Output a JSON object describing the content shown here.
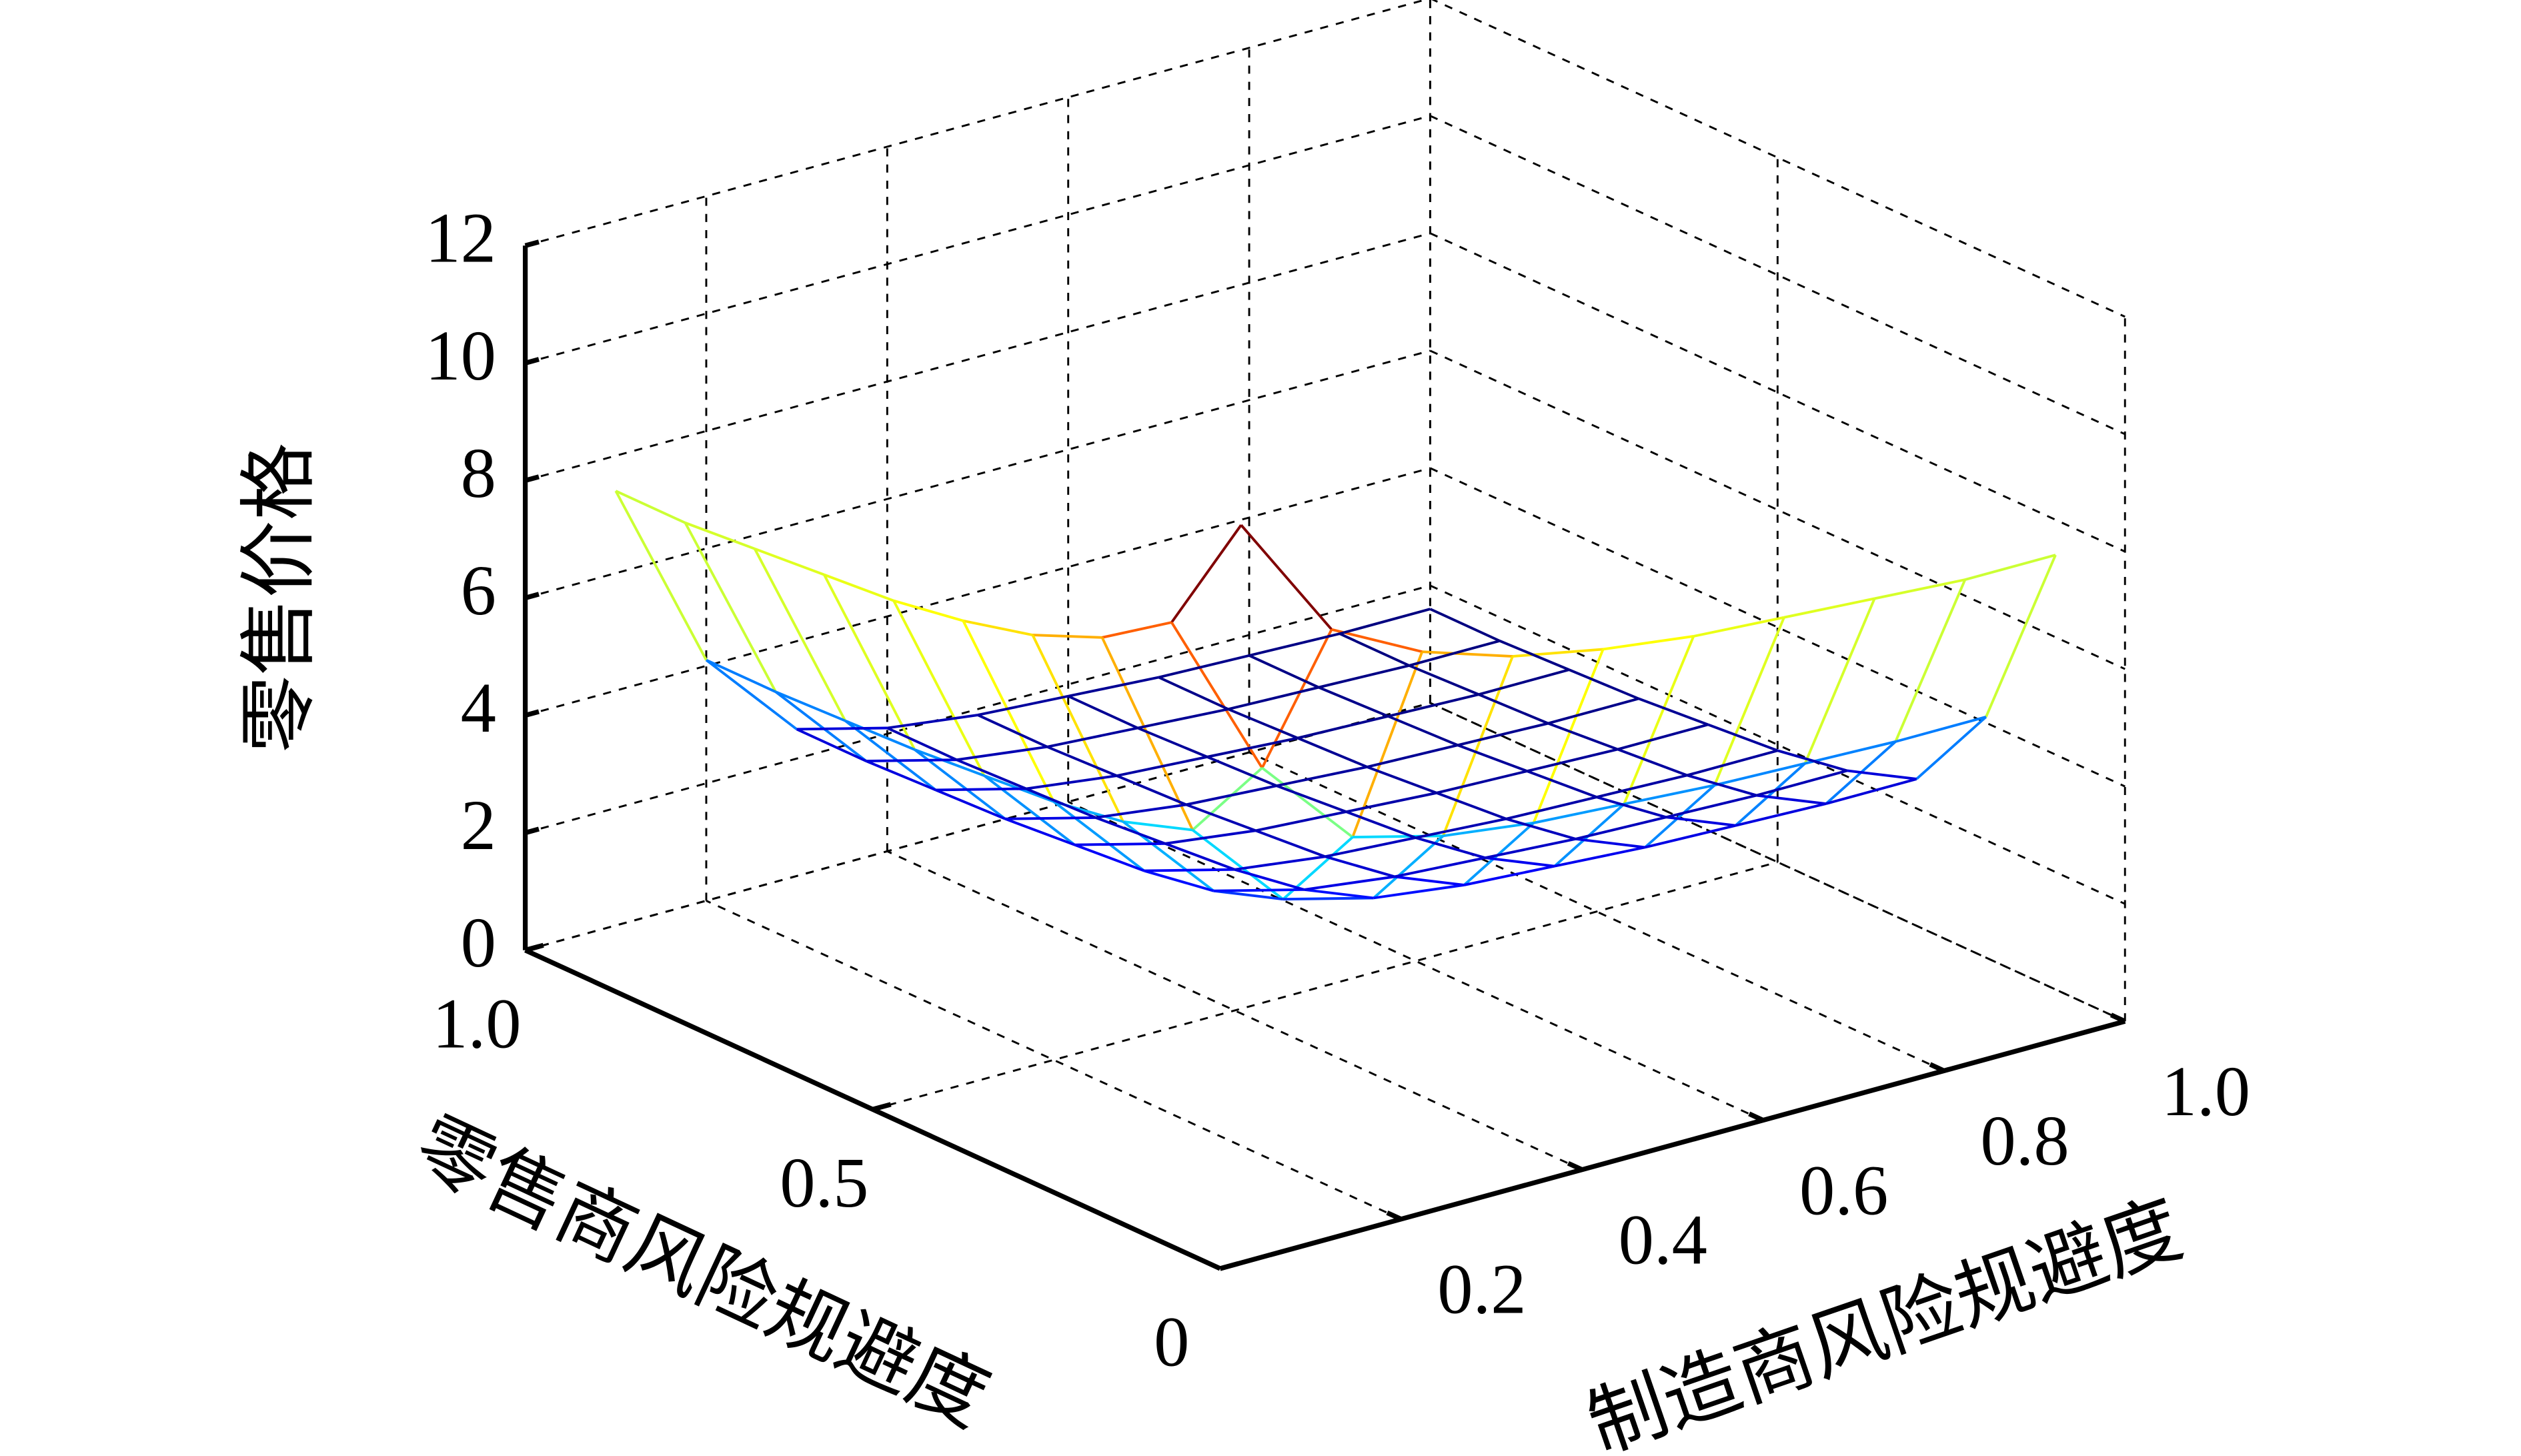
{
  "chart_data": {
    "type": "mesh",
    "zlabel": "零售价格",
    "xlabel": "制造商风险规避度",
    "ylabel": "零售商风险规避度",
    "x": [
      0.1,
      0.2,
      0.3,
      0.4,
      0.5,
      0.6,
      0.7,
      0.8,
      0.9,
      1.0
    ],
    "y": [
      0.1,
      0.2,
      0.3,
      0.4,
      0.5,
      0.6,
      0.7,
      0.8,
      0.9,
      1.0
    ],
    "z": [
      [
        11.7,
        9.5,
        8.7,
        8.2,
        7.9,
        7.7,
        7.6,
        7.5,
        7.4,
        7.4
      ],
      [
        9.5,
        6.6,
        5.0,
        4.6,
        4.4,
        4.3,
        4.2,
        4.15,
        4.1,
        4.1
      ],
      [
        8.7,
        5.0,
        3.4,
        3.0,
        2.8,
        2.7,
        2.6,
        2.55,
        2.5,
        2.5
      ],
      [
        8.2,
        4.6,
        3.0,
        2.6,
        2.4,
        2.3,
        2.2,
        2.15,
        2.1,
        2.1
      ],
      [
        7.9,
        4.4,
        2.8,
        2.4,
        2.2,
        2.1,
        2.0,
        1.95,
        1.9,
        1.9
      ],
      [
        7.7,
        4.3,
        2.7,
        2.3,
        2.1,
        2.0,
        1.9,
        1.85,
        1.8,
        1.8
      ],
      [
        7.6,
        4.2,
        2.6,
        2.2,
        2.0,
        1.9,
        1.8,
        1.75,
        1.7,
        1.7
      ],
      [
        7.5,
        4.15,
        2.55,
        2.15,
        1.95,
        1.85,
        1.75,
        1.7,
        1.65,
        1.65
      ],
      [
        7.4,
        4.1,
        2.5,
        2.1,
        1.9,
        1.8,
        1.7,
        1.65,
        1.6,
        1.6
      ],
      [
        7.4,
        4.1,
        2.5,
        2.1,
        1.9,
        1.8,
        1.7,
        1.65,
        1.6,
        1.6
      ]
    ],
    "xlim": [
      0,
      1
    ],
    "ylim": [
      0,
      1
    ],
    "zlim": [
      0,
      12
    ],
    "xticks": [
      0.2,
      0.4,
      0.6,
      0.8,
      {
        "value": 1,
        "label": "1.0"
      }
    ],
    "yticks": [
      0,
      0.5,
      {
        "value": 1,
        "label": "1.0"
      }
    ],
    "zticks": [
      0,
      2,
      4,
      6,
      8,
      10,
      12
    ],
    "grid": true,
    "colormap": "jet"
  }
}
